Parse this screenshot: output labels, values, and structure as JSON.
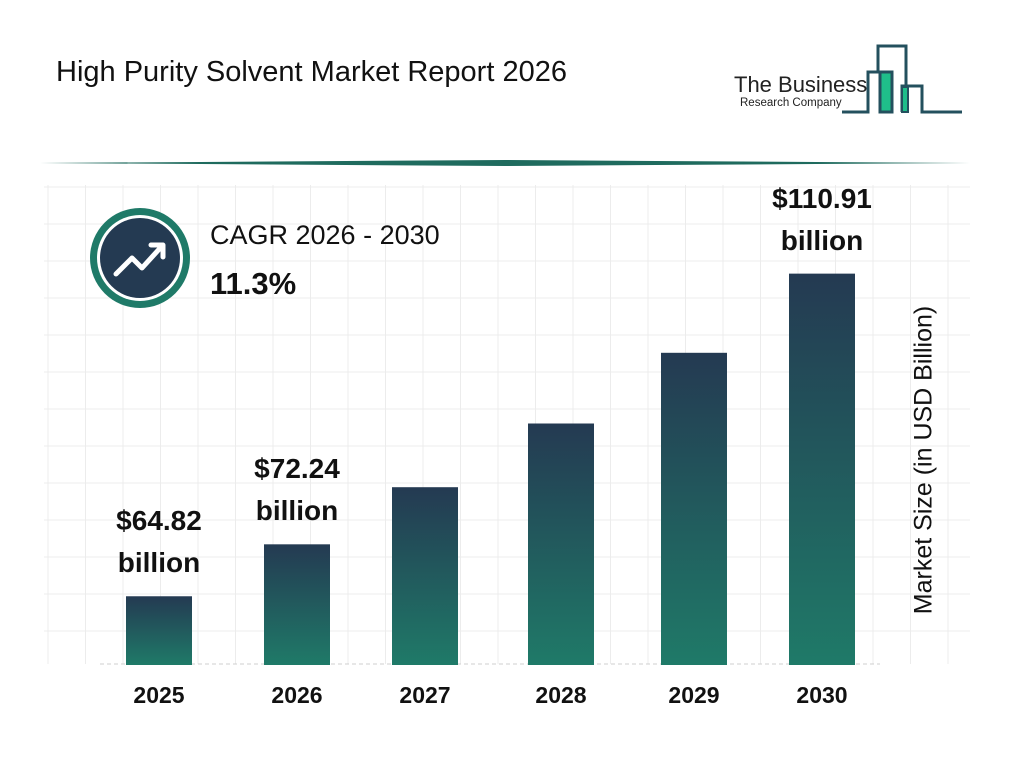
{
  "header": {
    "title": "High Purity Solvent Market Report 2026"
  },
  "logo": {
    "line1": "The Business",
    "line2": "Research Company",
    "colors": {
      "outline": "#24505e",
      "fill": "#1fbf8a"
    }
  },
  "cagr": {
    "label": "CAGR 2026 - 2030",
    "value": "11.3%",
    "icon": "trending-up-icon",
    "ring_color": "#1f7a68",
    "circle_color": "#243a52"
  },
  "chart_data": {
    "type": "bar",
    "title": "",
    "xlabel": "",
    "ylabel": "Market Size (in USD Billion)",
    "categories": [
      "2025",
      "2026",
      "2027",
      "2028",
      "2029",
      "2030"
    ],
    "values": [
      64.82,
      72.24,
      80.4,
      89.5,
      99.6,
      110.91
    ],
    "data_labels": [
      {
        "index": 0,
        "amount": "$64.82",
        "unit": "billion"
      },
      {
        "index": 1,
        "amount": "$72.24",
        "unit": "billion"
      },
      {
        "index": 5,
        "amount": "$110.91",
        "unit": "billion"
      }
    ],
    "ylim": [
      55,
      115
    ],
    "grid": true,
    "bar_gradient": [
      "#243a52",
      "#1f7a68"
    ]
  }
}
